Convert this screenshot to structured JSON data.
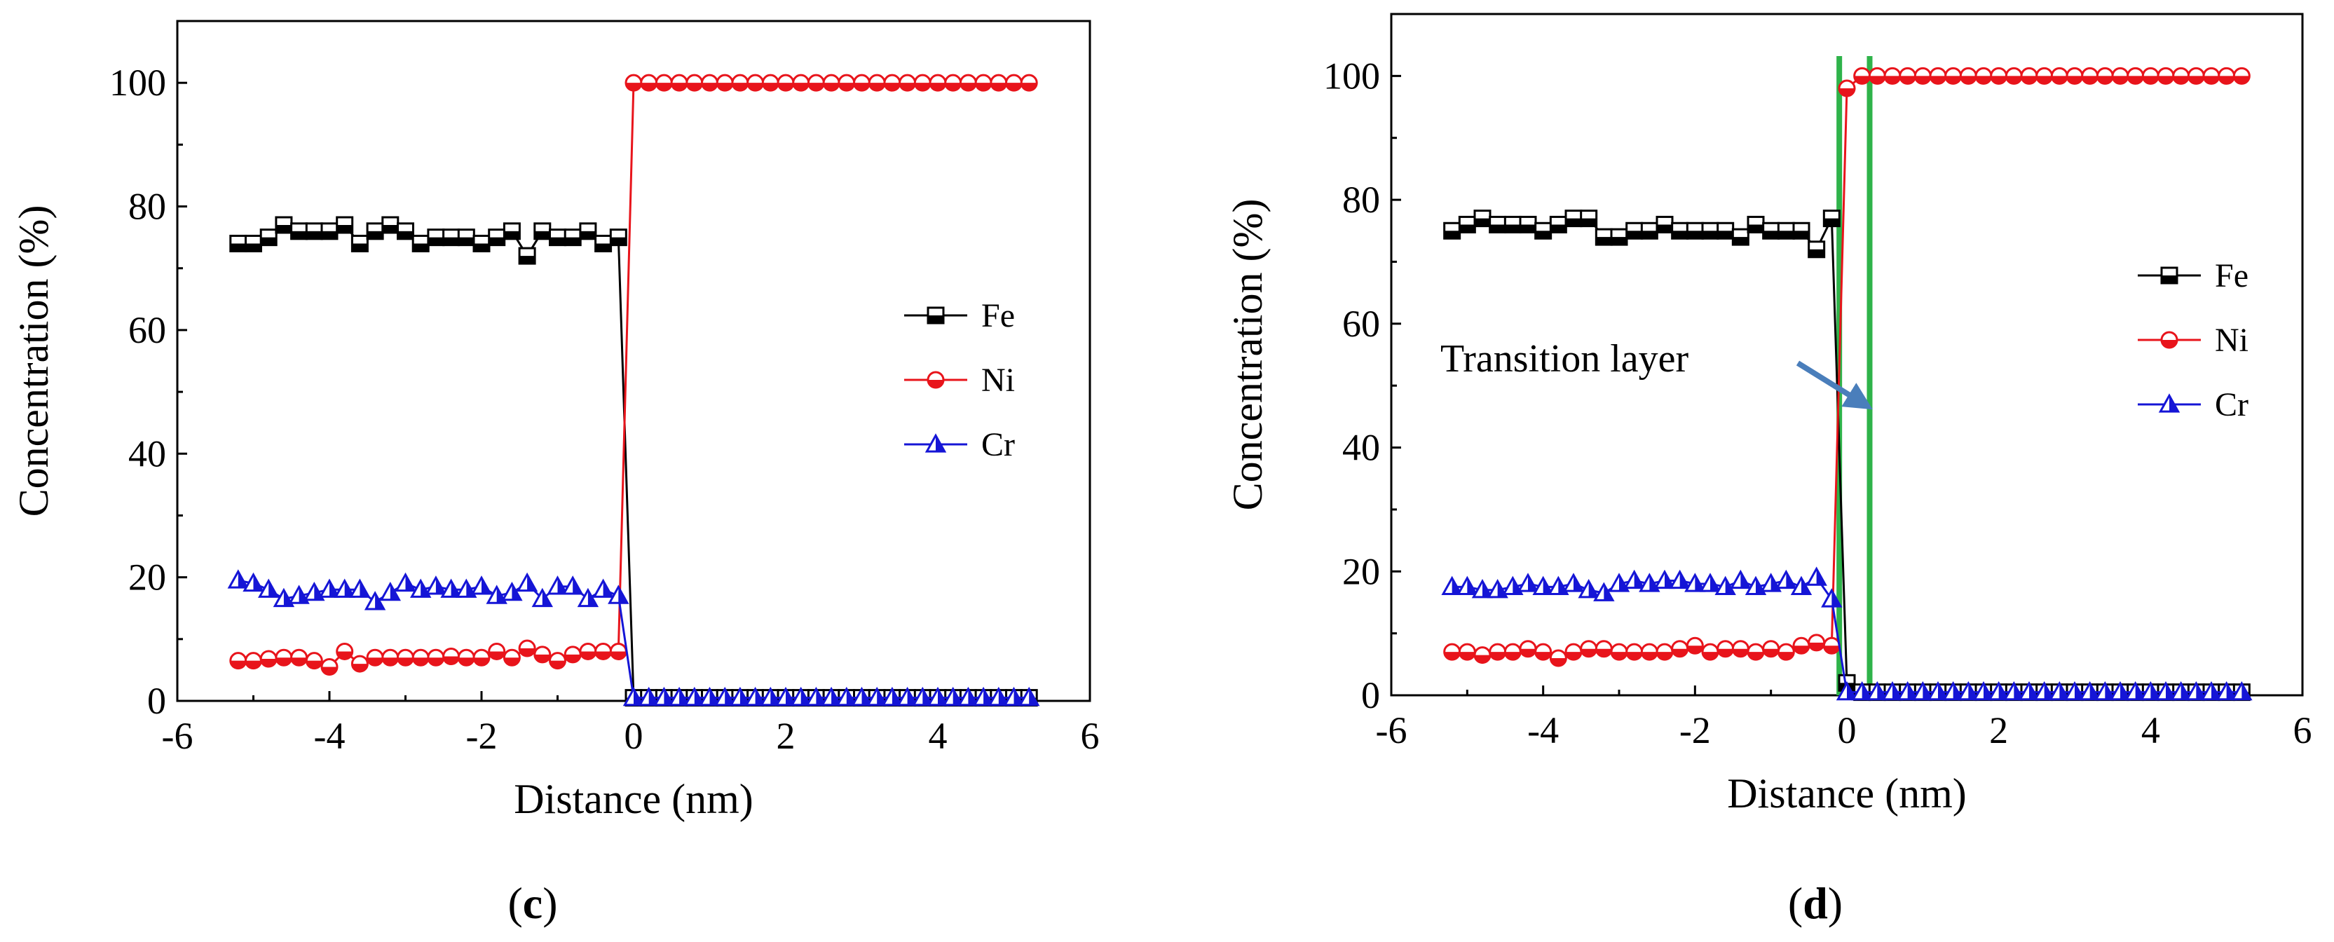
{
  "chart_data": [
    {
      "type": "line",
      "panel_label": "c",
      "xlabel": "Distance (nm)",
      "ylabel": "Concentration (%)",
      "xlim": [
        -6,
        6
      ],
      "ylim": [
        0,
        110
      ],
      "xticks": [
        -6,
        -4,
        -2,
        0,
        2,
        4,
        6
      ],
      "yticks": [
        0,
        20,
        40,
        60,
        80,
        100
      ],
      "grid": false,
      "legend_position": "right-middle",
      "series": [
        {
          "name": "Fe",
          "color": "#000000",
          "marker": "half-filled-square",
          "x": [
            -5.2,
            -5.0,
            -4.8,
            -4.6,
            -4.4,
            -4.2,
            -4.0,
            -3.8,
            -3.6,
            -3.4,
            -3.2,
            -3.0,
            -2.8,
            -2.6,
            -2.4,
            -2.2,
            -2.0,
            -1.8,
            -1.6,
            -1.4,
            -1.2,
            -1.0,
            -0.8,
            -0.6,
            -0.4,
            -0.2,
            0.0,
            0.2,
            0.4,
            0.6,
            0.8,
            1.0,
            1.2,
            1.4,
            1.6,
            1.8,
            2.0,
            2.2,
            2.4,
            2.6,
            2.8,
            3.0,
            3.2,
            3.4,
            3.6,
            3.8,
            4.0,
            4.2,
            4.4,
            4.6,
            4.8,
            5.0,
            5.2
          ],
          "y": [
            74,
            74,
            75,
            77,
            76,
            76,
            76,
            77,
            74,
            76,
            77,
            76,
            74,
            75,
            75,
            75,
            74,
            75,
            76,
            72,
            76,
            75,
            75,
            76,
            74,
            75,
            0.5,
            0.5,
            0.5,
            0.5,
            0.5,
            0.5,
            0.5,
            0.5,
            0.5,
            0.5,
            0.5,
            0.5,
            0.5,
            0.5,
            0.5,
            0.5,
            0.5,
            0.5,
            0.5,
            0.5,
            0.5,
            0.5,
            0.5,
            0.5,
            0.5,
            0.5,
            0.5
          ]
        },
        {
          "name": "Ni",
          "color": "#e8141b",
          "marker": "half-filled-circle",
          "x": [
            -5.2,
            -5.0,
            -4.8,
            -4.6,
            -4.4,
            -4.2,
            -4.0,
            -3.8,
            -3.6,
            -3.4,
            -3.2,
            -3.0,
            -2.8,
            -2.6,
            -2.4,
            -2.2,
            -2.0,
            -1.8,
            -1.6,
            -1.4,
            -1.2,
            -1.0,
            -0.8,
            -0.6,
            -0.4,
            -0.2,
            0.0,
            0.2,
            0.4,
            0.6,
            0.8,
            1.0,
            1.2,
            1.4,
            1.6,
            1.8,
            2.0,
            2.2,
            2.4,
            2.6,
            2.8,
            3.0,
            3.2,
            3.4,
            3.6,
            3.8,
            4.0,
            4.2,
            4.4,
            4.6,
            4.8,
            5.0,
            5.2
          ],
          "y": [
            6.5,
            6.5,
            6.8,
            7,
            7,
            6.5,
            5.5,
            8,
            6,
            7,
            7,
            7,
            7,
            7,
            7.2,
            7,
            7,
            8,
            7,
            8.5,
            7.5,
            6.5,
            7.5,
            8,
            8,
            8,
            100,
            100,
            100,
            100,
            100,
            100,
            100,
            100,
            100,
            100,
            100,
            100,
            100,
            100,
            100,
            100,
            100,
            100,
            100,
            100,
            100,
            100,
            100,
            100,
            100,
            100,
            100
          ]
        },
        {
          "name": "Cr",
          "color": "#1515d6",
          "marker": "half-filled-triangle",
          "x": [
            -5.2,
            -5.0,
            -4.8,
            -4.6,
            -4.4,
            -4.2,
            -4.0,
            -3.8,
            -3.6,
            -3.4,
            -3.2,
            -3.0,
            -2.8,
            -2.6,
            -2.4,
            -2.2,
            -2.0,
            -1.8,
            -1.6,
            -1.4,
            -1.2,
            -1.0,
            -0.8,
            -0.6,
            -0.4,
            -0.2,
            0.0,
            0.2,
            0.4,
            0.6,
            0.8,
            1.0,
            1.2,
            1.4,
            1.6,
            1.8,
            2.0,
            2.2,
            2.4,
            2.6,
            2.8,
            3.0,
            3.2,
            3.4,
            3.6,
            3.8,
            4.0,
            4.2,
            4.4,
            4.6,
            4.8,
            5.0,
            5.2
          ],
          "y": [
            19.5,
            19,
            18,
            16.5,
            17,
            17.5,
            18,
            18,
            18,
            16,
            17.5,
            19,
            18,
            18.5,
            18,
            18,
            18.5,
            17,
            17.5,
            19,
            16.5,
            18.5,
            18.5,
            16.5,
            18,
            17,
            0.5,
            0.5,
            0.5,
            0.5,
            0.5,
            0.5,
            0.5,
            0.5,
            0.5,
            0.5,
            0.5,
            0.5,
            0.5,
            0.5,
            0.5,
            0.5,
            0.5,
            0.5,
            0.5,
            0.5,
            0.5,
            0.5,
            0.5,
            0.5,
            0.5,
            0.5,
            0.5
          ]
        }
      ]
    },
    {
      "type": "line",
      "panel_label": "d",
      "xlabel": "Distance (nm)",
      "ylabel": "Concentration (%)",
      "xlim": [
        -6,
        6
      ],
      "ylim": [
        0,
        110
      ],
      "xticks": [
        -6,
        -4,
        -2,
        0,
        2,
        4,
        6
      ],
      "yticks": [
        0,
        20,
        40,
        60,
        80,
        100
      ],
      "grid": false,
      "legend_position": "right-upper",
      "annotation": {
        "text": "Transition layer",
        "arrow_color": "#4a7ebb",
        "layer_line_color": "#2fb34a",
        "layer_bounds_x": [
          -0.1,
          0.3
        ]
      },
      "series": [
        {
          "name": "Fe",
          "color": "#000000",
          "marker": "half-filled-square",
          "x": [
            -5.2,
            -5.0,
            -4.8,
            -4.6,
            -4.4,
            -4.2,
            -4.0,
            -3.8,
            -3.6,
            -3.4,
            -3.2,
            -3.0,
            -2.8,
            -2.6,
            -2.4,
            -2.2,
            -2.0,
            -1.8,
            -1.6,
            -1.4,
            -1.2,
            -1.0,
            -0.8,
            -0.6,
            -0.4,
            -0.2,
            0.0,
            0.2,
            0.4,
            0.6,
            0.8,
            1.0,
            1.2,
            1.4,
            1.6,
            1.8,
            2.0,
            2.2,
            2.4,
            2.6,
            2.8,
            3.0,
            3.2,
            3.4,
            3.6,
            3.8,
            4.0,
            4.2,
            4.4,
            4.6,
            4.8,
            5.0,
            5.2
          ],
          "y": [
            75,
            76,
            77,
            76,
            76,
            76,
            75,
            76,
            77,
            77,
            74,
            74,
            75,
            75,
            76,
            75,
            75,
            75,
            75,
            74,
            76,
            75,
            75,
            75,
            72,
            77,
            2,
            0.5,
            0.5,
            0.5,
            0.5,
            0.5,
            0.5,
            0.5,
            0.5,
            0.5,
            0.5,
            0.5,
            0.5,
            0.5,
            0.5,
            0.5,
            0.5,
            0.5,
            0.5,
            0.5,
            0.5,
            0.5,
            0.5,
            0.5,
            0.5,
            0.5,
            0.5
          ]
        },
        {
          "name": "Ni",
          "color": "#e8141b",
          "marker": "half-filled-circle",
          "x": [
            -5.2,
            -5.0,
            -4.8,
            -4.6,
            -4.4,
            -4.2,
            -4.0,
            -3.8,
            -3.6,
            -3.4,
            -3.2,
            -3.0,
            -2.8,
            -2.6,
            -2.4,
            -2.2,
            -2.0,
            -1.8,
            -1.6,
            -1.4,
            -1.2,
            -1.0,
            -0.8,
            -0.6,
            -0.4,
            -0.2,
            0.0,
            0.2,
            0.4,
            0.6,
            0.8,
            1.0,
            1.2,
            1.4,
            1.6,
            1.8,
            2.0,
            2.2,
            2.4,
            2.6,
            2.8,
            3.0,
            3.2,
            3.4,
            3.6,
            3.8,
            4.0,
            4.2,
            4.4,
            4.6,
            4.8,
            5.0,
            5.2
          ],
          "y": [
            7,
            7,
            6.5,
            7,
            7,
            7.5,
            7,
            6,
            7,
            7.5,
            7.5,
            7,
            7,
            7,
            7,
            7.5,
            8,
            7,
            7.5,
            7.5,
            7,
            7.5,
            7,
            8,
            8.5,
            8,
            98,
            100,
            100,
            100,
            100,
            100,
            100,
            100,
            100,
            100,
            100,
            100,
            100,
            100,
            100,
            100,
            100,
            100,
            100,
            100,
            100,
            100,
            100,
            100,
            100,
            100,
            100
          ]
        },
        {
          "name": "Cr",
          "color": "#1515d6",
          "marker": "half-filled-triangle",
          "x": [
            -5.2,
            -5.0,
            -4.8,
            -4.6,
            -4.4,
            -4.2,
            -4.0,
            -3.8,
            -3.6,
            -3.4,
            -3.2,
            -3.0,
            -2.8,
            -2.6,
            -2.4,
            -2.2,
            -2.0,
            -1.8,
            -1.6,
            -1.4,
            -1.2,
            -1.0,
            -0.8,
            -0.6,
            -0.4,
            -0.2,
            0.0,
            0.2,
            0.4,
            0.6,
            0.8,
            1.0,
            1.2,
            1.4,
            1.6,
            1.8,
            2.0,
            2.2,
            2.4,
            2.6,
            2.8,
            3.0,
            3.2,
            3.4,
            3.6,
            3.8,
            4.0,
            4.2,
            4.4,
            4.6,
            4.8,
            5.0,
            5.2
          ],
          "y": [
            17.5,
            17.5,
            17,
            17,
            17.5,
            18,
            17.5,
            17.5,
            18,
            17,
            16.5,
            18,
            18.5,
            18,
            18.5,
            18.5,
            18,
            18,
            17.5,
            18.5,
            17.5,
            18,
            18.5,
            17.5,
            19,
            15.5,
            0.5,
            0.5,
            0.5,
            0.5,
            0.5,
            0.5,
            0.5,
            0.5,
            0.5,
            0.5,
            0.5,
            0.5,
            0.5,
            0.5,
            0.5,
            0.5,
            0.5,
            0.5,
            0.5,
            0.5,
            0.5,
            0.5,
            0.5,
            0.5,
            0.5,
            0.5,
            0.5
          ]
        }
      ]
    }
  ]
}
